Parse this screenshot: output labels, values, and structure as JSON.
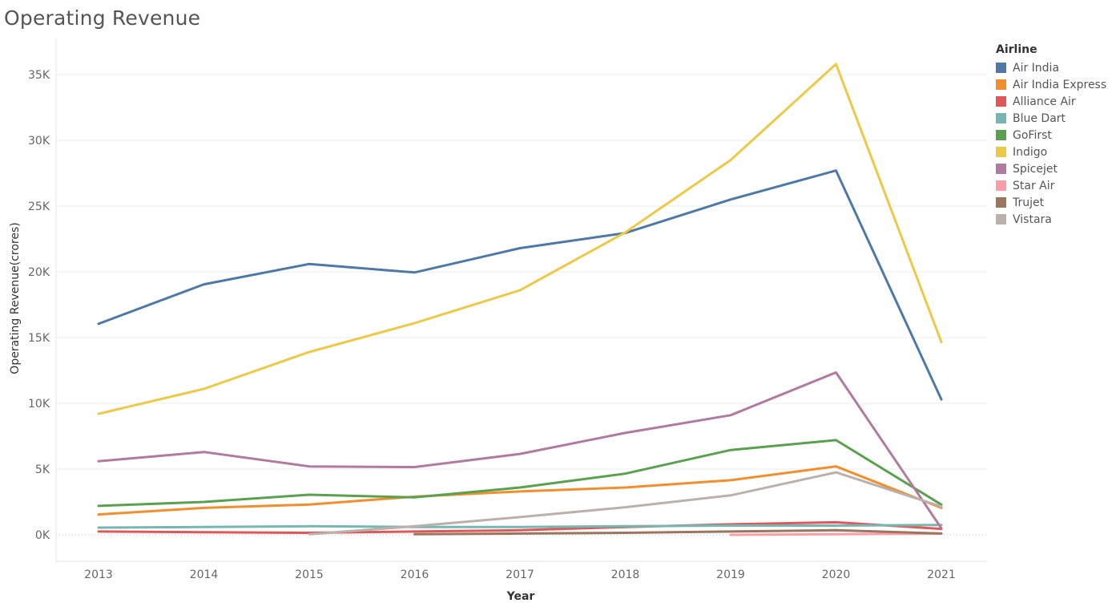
{
  "chart_data": {
    "type": "line",
    "title": "Operating Revenue",
    "xlabel": "Year",
    "ylabel": "Operating Revenue(crores)",
    "x": [
      2013,
      2014,
      2015,
      2016,
      2017,
      2018,
      2019,
      2020,
      2021
    ],
    "ylim": [
      -2000,
      37000
    ],
    "yticks": [
      0,
      5000,
      10000,
      15000,
      20000,
      25000,
      30000,
      35000
    ],
    "ytick_labels": [
      "0K",
      "5K",
      "10K",
      "15K",
      "20K",
      "25K",
      "30K",
      "35K"
    ],
    "legend_title": "Airline",
    "legend_position": "right",
    "series": [
      {
        "name": "Air India",
        "color": "#4e79a7",
        "values": [
          16050,
          19050,
          20600,
          19950,
          21800,
          22950,
          25500,
          27700,
          10300
        ]
      },
      {
        "name": "Air India Express",
        "color": "#f28e2b",
        "values": [
          1550,
          2050,
          2300,
          2900,
          3300,
          3600,
          4150,
          5200,
          2050
        ]
      },
      {
        "name": "Alliance Air",
        "color": "#e15759",
        "values": [
          250,
          200,
          150,
          250,
          350,
          600,
          800,
          950,
          450
        ]
      },
      {
        "name": "Blue Dart",
        "color": "#76b7b2",
        "values": [
          550,
          600,
          650,
          600,
          600,
          650,
          700,
          700,
          750
        ]
      },
      {
        "name": "GoFirst",
        "color": "#59a14f",
        "values": [
          2200,
          2500,
          3050,
          2850,
          3600,
          4650,
          6450,
          7200,
          2300
        ]
      },
      {
        "name": "Indigo",
        "color": "#edc948",
        "values": [
          9200,
          11100,
          13900,
          16100,
          18600,
          23000,
          28500,
          35800,
          14650
        ]
      },
      {
        "name": "Spicejet",
        "color": "#b07aa1",
        "values": [
          5600,
          6300,
          5200,
          5150,
          6150,
          7750,
          9100,
          12350,
          500
        ]
      },
      {
        "name": "Star Air",
        "color": "#ff9da7",
        "values": [
          null,
          null,
          null,
          null,
          null,
          null,
          0,
          50,
          100
        ]
      },
      {
        "name": "Trujet",
        "color": "#9c755f",
        "values": [
          null,
          null,
          null,
          50,
          100,
          150,
          250,
          350,
          100
        ]
      },
      {
        "name": "Vistara",
        "color": "#bab0ac",
        "values": [
          null,
          null,
          50,
          650,
          1350,
          2100,
          3000,
          4750,
          2150
        ]
      }
    ]
  }
}
